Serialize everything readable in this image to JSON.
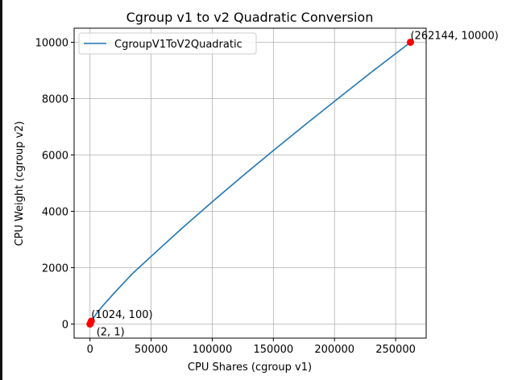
{
  "chart_data": {
    "type": "line",
    "title": "Cgroup v1 to v2 Quadratic Conversion",
    "xlabel": "CPU Shares (cgroup v1)",
    "ylabel": "CPU Weight (cgroup v2)",
    "xlim": [
      -13000,
      275000
    ],
    "ylim": [
      -500,
      10500
    ],
    "xticks": [
      0,
      50000,
      100000,
      150000,
      200000,
      250000
    ],
    "yticks": [
      0,
      2000,
      4000,
      6000,
      8000,
      10000
    ],
    "grid": true,
    "legend": "upper-left",
    "series": [
      {
        "name": "CgroupV1ToV2Quadratic",
        "color": "#1f77b4",
        "x": [
          2,
          1024,
          5000,
          10000,
          20000,
          35000,
          50000,
          75000,
          100000,
          125000,
          150000,
          175000,
          200000,
          230000,
          262144
        ],
        "y": [
          1,
          100,
          355,
          626,
          1112,
          1800,
          2402,
          3390,
          4339,
          5260,
          6157,
          7040,
          7904,
          8930,
          10000
        ]
      }
    ],
    "points": [
      {
        "x": 2,
        "y": 1,
        "label": "(2, 1)"
      },
      {
        "x": 1024,
        "y": 100,
        "label": "(1024, 100)"
      },
      {
        "x": 262144,
        "y": 10000,
        "label": "(262144, 10000)"
      }
    ],
    "point_color": "#ff0000"
  }
}
